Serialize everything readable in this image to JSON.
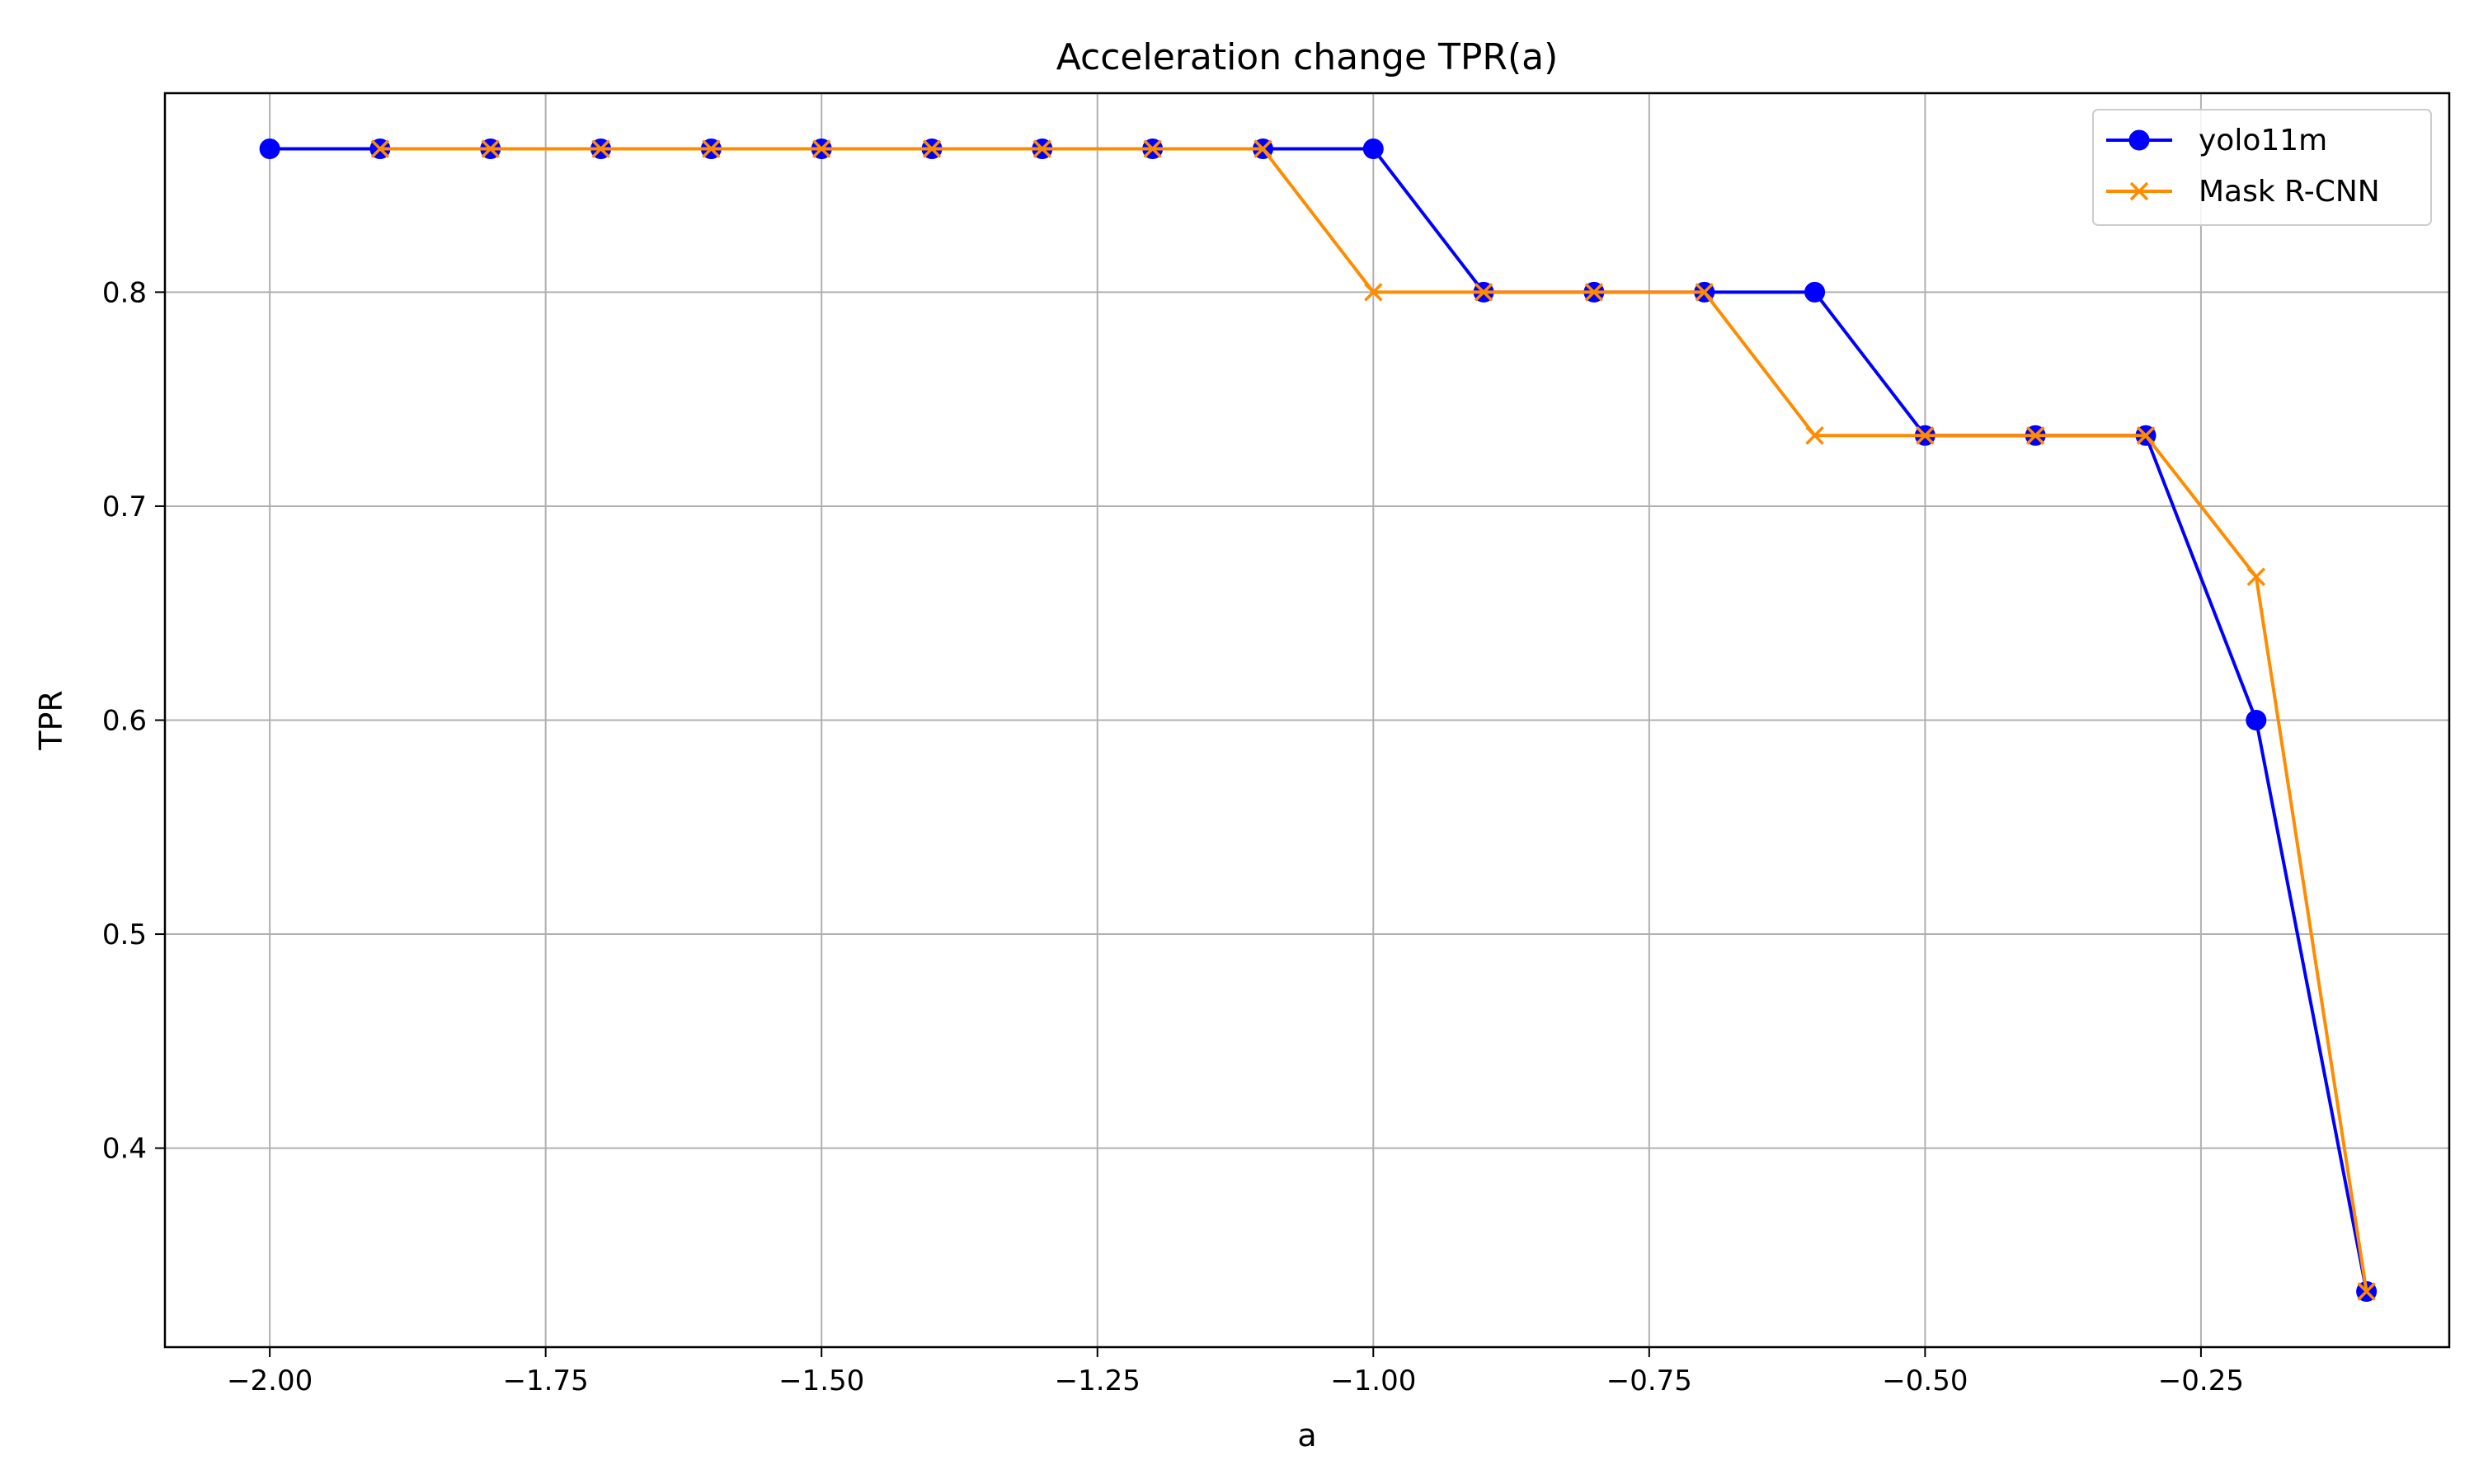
{
  "chart_data": {
    "type": "line",
    "title": "Acceleration change TPR(a)",
    "xlabel": "a",
    "ylabel": "TPR",
    "xlim": [
      -2.095,
      -0.025
    ],
    "ylim": [
      0.307,
      0.893
    ],
    "xticks": [
      -2.0,
      -1.75,
      -1.5,
      -1.25,
      -1.0,
      -0.75,
      -0.5,
      -0.25
    ],
    "xtick_labels": [
      "−2.00",
      "−1.75",
      "−1.50",
      "−1.25",
      "−1.00",
      "−0.75",
      "−0.50",
      "−0.25"
    ],
    "yticks": [
      0.4,
      0.5,
      0.6,
      0.7,
      0.8
    ],
    "ytick_labels": [
      "0.4",
      "0.5",
      "0.6",
      "0.7",
      "0.8"
    ],
    "grid": true,
    "legend_position": "top-right",
    "series": [
      {
        "name": "yolo11m",
        "color": "#0000ff",
        "marker": "circle",
        "x": [
          -2.0,
          -1.9,
          -1.8,
          -1.7,
          -1.6,
          -1.5,
          -1.4,
          -1.3,
          -1.2,
          -1.1,
          -1.0,
          -0.9,
          -0.8,
          -0.7,
          -0.6,
          -0.5,
          -0.4,
          -0.3,
          -0.2,
          -0.1
        ],
        "y": [
          0.867,
          0.867,
          0.867,
          0.867,
          0.867,
          0.867,
          0.867,
          0.867,
          0.867,
          0.867,
          0.867,
          0.8,
          0.8,
          0.8,
          0.8,
          0.733,
          0.733,
          0.733,
          0.6,
          0.333
        ]
      },
      {
        "name": "Mask R-CNN",
        "color": "#ff8c00",
        "marker": "x",
        "x": [
          -1.9,
          -1.8,
          -1.7,
          -1.6,
          -1.5,
          -1.4,
          -1.3,
          -1.2,
          -1.1,
          -1.0,
          -0.9,
          -0.8,
          -0.7,
          -0.6,
          -0.5,
          -0.4,
          -0.3,
          -0.2,
          -0.1
        ],
        "y": [
          0.867,
          0.867,
          0.867,
          0.867,
          0.867,
          0.867,
          0.867,
          0.867,
          0.867,
          0.8,
          0.8,
          0.8,
          0.8,
          0.733,
          0.733,
          0.733,
          0.733,
          0.667,
          0.333
        ]
      }
    ]
  }
}
